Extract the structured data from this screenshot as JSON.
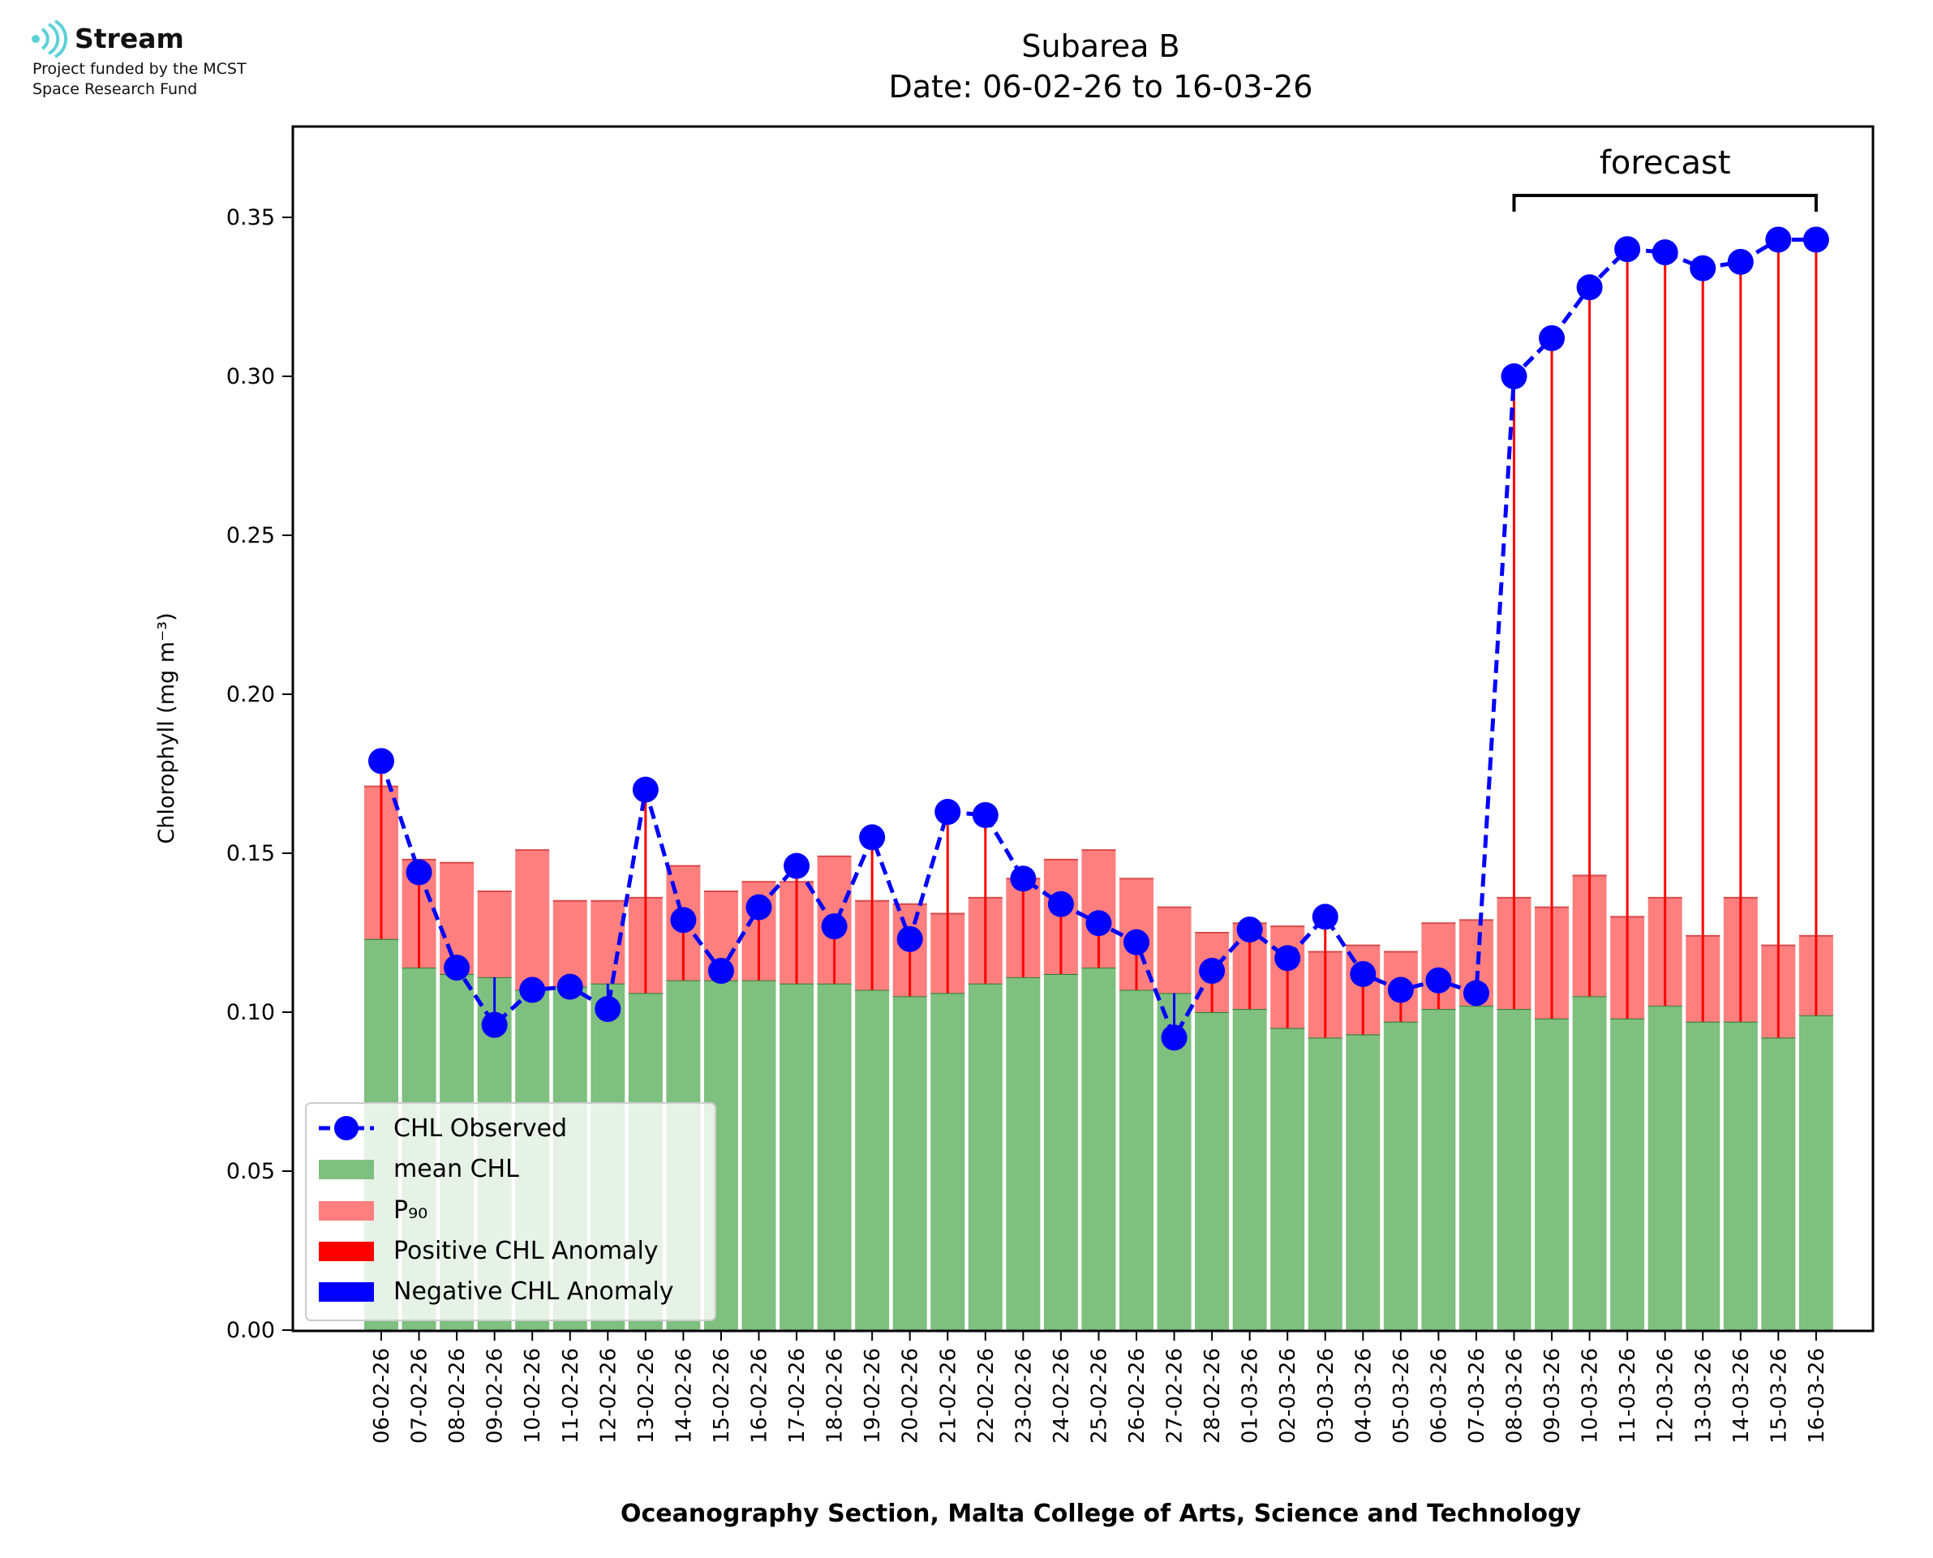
{
  "logo": {
    "brand": "Stream",
    "line1": "Project funded by the MCST",
    "line2": "Space Research Fund"
  },
  "chart_data": {
    "type": "bar",
    "title": "Subarea B",
    "subtitle": "Date: 06-02-26 to 16-03-26",
    "xlabel": "Oceanography Section, Malta College of Arts, Science and Technology",
    "ylabel": "Chlorophyll (mg m⁻³)",
    "ylim": [
      0,
      0.375
    ],
    "yticks": [
      0.0,
      0.05,
      0.1,
      0.15,
      0.2,
      0.25,
      0.3,
      0.35
    ],
    "forecast_label": "forecast",
    "forecast_range": [
      "08-03-26",
      "16-03-26"
    ],
    "grid": false,
    "legend_position": "lower-left",
    "colors": {
      "observed": "#0000ff",
      "mean": "#7fbf7f",
      "mean_edge": "#2e7d2e",
      "p90": "#ff7f7f",
      "positive_anomaly": "#ff0000",
      "negative_anomaly": "#0000ff"
    },
    "categories": [
      "06-02-26",
      "07-02-26",
      "08-02-26",
      "09-02-26",
      "10-02-26",
      "11-02-26",
      "12-02-26",
      "13-02-26",
      "14-02-26",
      "15-02-26",
      "16-02-26",
      "17-02-26",
      "18-02-26",
      "19-02-26",
      "20-02-26",
      "21-02-26",
      "22-02-26",
      "23-02-26",
      "24-02-26",
      "25-02-26",
      "26-02-26",
      "27-02-26",
      "28-02-26",
      "01-03-26",
      "02-03-26",
      "03-03-26",
      "04-03-26",
      "05-03-26",
      "06-03-26",
      "07-03-26",
      "08-03-26",
      "09-03-26",
      "10-03-26",
      "11-03-26",
      "12-03-26",
      "13-03-26",
      "14-03-26",
      "15-03-26",
      "16-03-26"
    ],
    "series": [
      {
        "name": "CHL Observed",
        "values": [
          0.179,
          0.144,
          0.114,
          0.096,
          0.107,
          0.108,
          0.101,
          0.17,
          0.129,
          0.113,
          0.133,
          0.146,
          0.127,
          0.155,
          0.123,
          0.163,
          0.162,
          0.142,
          0.134,
          0.128,
          0.122,
          0.092,
          0.113,
          0.126,
          0.117,
          0.13,
          0.112,
          0.107,
          0.11,
          0.106,
          0.3,
          0.312,
          0.328,
          0.34,
          0.339,
          0.334,
          0.336,
          0.343,
          0.343
        ]
      },
      {
        "name": "mean CHL",
        "values": [
          0.123,
          0.114,
          0.112,
          0.111,
          0.107,
          0.108,
          0.109,
          0.106,
          0.11,
          0.11,
          0.11,
          0.109,
          0.109,
          0.107,
          0.105,
          0.106,
          0.109,
          0.111,
          0.112,
          0.114,
          0.107,
          0.106,
          0.1,
          0.101,
          0.095,
          0.092,
          0.093,
          0.097,
          0.101,
          0.102,
          0.101,
          0.098,
          0.105,
          0.098,
          0.102,
          0.097,
          0.097,
          0.092,
          0.099
        ]
      },
      {
        "name": "P₉₀",
        "values": [
          0.171,
          0.148,
          0.147,
          0.138,
          0.151,
          0.135,
          0.135,
          0.136,
          0.146,
          0.138,
          0.141,
          0.141,
          0.149,
          0.135,
          0.134,
          0.131,
          0.136,
          0.142,
          0.148,
          0.151,
          0.142,
          0.133,
          0.125,
          0.128,
          0.127,
          0.119,
          0.121,
          0.119,
          0.128,
          0.129,
          0.136,
          0.133,
          0.143,
          0.13,
          0.136,
          0.124,
          0.136,
          0.121,
          0.124
        ]
      }
    ],
    "legend": [
      "CHL Observed",
      "mean CHL",
      "P₉₀",
      "Positive CHL Anomaly",
      "Negative CHL Anomaly"
    ]
  }
}
